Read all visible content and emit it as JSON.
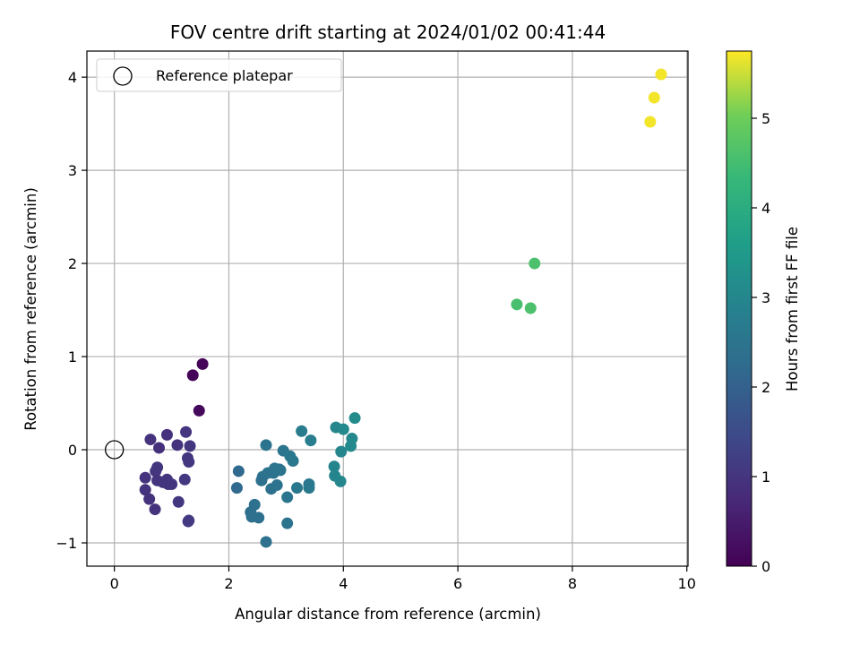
{
  "chart_data": {
    "type": "scatter",
    "title": "FOV centre drift starting at 2024/01/02 00:41:44",
    "xlabel": "Angular distance from reference (arcmin)",
    "ylabel": "Rotation from reference (arcmin)",
    "xlim": [
      -0.48,
      10.02
    ],
    "ylim": [
      -1.25,
      4.28
    ],
    "xticks": [
      0,
      2,
      4,
      6,
      8,
      10
    ],
    "yticks": [
      -1,
      0,
      1,
      2,
      3,
      4
    ],
    "xtick_labels": [
      "0",
      "2",
      "4",
      "6",
      "8",
      "10"
    ],
    "ytick_labels": [
      "−1",
      "0",
      "1",
      "2",
      "3",
      "4"
    ],
    "grid": true,
    "legend": {
      "placement": "top-left",
      "entries": [
        {
          "label": "Reference platepar",
          "marker": "open-circle"
        }
      ]
    },
    "reference_point": {
      "x": 0,
      "y": 0
    },
    "colorbar": {
      "label": "Hours from first FF file",
      "colormap": "viridis",
      "range": [
        0,
        5.75
      ],
      "ticks": [
        0,
        1,
        2,
        3,
        4,
        5
      ],
      "tick_labels": [
        "0",
        "1",
        "2",
        "3",
        "4",
        "5"
      ]
    },
    "points": [
      {
        "x": 1.37,
        "y": 0.8,
        "c": 0.05
      },
      {
        "x": 1.54,
        "y": 0.92,
        "c": 0.1
      },
      {
        "x": 1.48,
        "y": 0.42,
        "c": 0.15
      },
      {
        "x": 0.78,
        "y": 0.02,
        "c": 0.9
      },
      {
        "x": 0.92,
        "y": 0.16,
        "c": 0.92
      },
      {
        "x": 0.63,
        "y": 0.11,
        "c": 0.95
      },
      {
        "x": 1.1,
        "y": 0.05,
        "c": 0.95
      },
      {
        "x": 1.25,
        "y": 0.19,
        "c": 0.97
      },
      {
        "x": 1.32,
        "y": 0.04,
        "c": 1.0
      },
      {
        "x": 1.28,
        "y": -0.09,
        "c": 1.0
      },
      {
        "x": 1.3,
        "y": -0.13,
        "c": 1.02
      },
      {
        "x": 0.75,
        "y": -0.19,
        "c": 1.0
      },
      {
        "x": 0.72,
        "y": -0.23,
        "c": 1.0
      },
      {
        "x": 0.54,
        "y": -0.3,
        "c": 0.95
      },
      {
        "x": 0.75,
        "y": -0.33,
        "c": 0.98
      },
      {
        "x": 0.92,
        "y": -0.32,
        "c": 1.0
      },
      {
        "x": 0.85,
        "y": -0.35,
        "c": 1.0
      },
      {
        "x": 0.94,
        "y": -0.37,
        "c": 1.0
      },
      {
        "x": 1.0,
        "y": -0.37,
        "c": 1.0
      },
      {
        "x": 1.23,
        "y": -0.32,
        "c": 1.05
      },
      {
        "x": 0.54,
        "y": -0.43,
        "c": 0.95
      },
      {
        "x": 0.61,
        "y": -0.53,
        "c": 0.95
      },
      {
        "x": 1.12,
        "y": -0.56,
        "c": 1.05
      },
      {
        "x": 0.71,
        "y": -0.64,
        "c": 0.95
      },
      {
        "x": 1.29,
        "y": -0.77,
        "c": 1.1
      },
      {
        "x": 1.3,
        "y": -0.76,
        "c": 1.1
      },
      {
        "x": 2.17,
        "y": -0.23,
        "c": 2.2
      },
      {
        "x": 2.14,
        "y": -0.41,
        "c": 2.2
      },
      {
        "x": 2.65,
        "y": 0.05,
        "c": 2.5
      },
      {
        "x": 2.59,
        "y": -0.29,
        "c": 2.4
      },
      {
        "x": 2.57,
        "y": -0.33,
        "c": 2.4
      },
      {
        "x": 2.68,
        "y": -0.25,
        "c": 2.45
      },
      {
        "x": 2.74,
        "y": -0.42,
        "c": 2.4
      },
      {
        "x": 2.78,
        "y": -0.25,
        "c": 2.45
      },
      {
        "x": 2.8,
        "y": -0.2,
        "c": 2.45
      },
      {
        "x": 2.84,
        "y": -0.38,
        "c": 2.45
      },
      {
        "x": 2.88,
        "y": -0.21,
        "c": 2.5
      },
      {
        "x": 2.9,
        "y": -0.22,
        "c": 2.5
      },
      {
        "x": 2.95,
        "y": -0.01,
        "c": 2.55
      },
      {
        "x": 3.07,
        "y": -0.07,
        "c": 2.6
      },
      {
        "x": 3.12,
        "y": -0.12,
        "c": 2.6
      },
      {
        "x": 3.02,
        "y": -0.51,
        "c": 2.55
      },
      {
        "x": 3.19,
        "y": -0.41,
        "c": 2.6
      },
      {
        "x": 3.27,
        "y": 0.2,
        "c": 2.7
      },
      {
        "x": 3.43,
        "y": 0.1,
        "c": 2.75
      },
      {
        "x": 3.4,
        "y": -0.37,
        "c": 2.6
      },
      {
        "x": 3.4,
        "y": -0.41,
        "c": 2.6
      },
      {
        "x": 2.45,
        "y": -0.59,
        "c": 2.4
      },
      {
        "x": 2.38,
        "y": -0.67,
        "c": 2.35
      },
      {
        "x": 2.4,
        "y": -0.72,
        "c": 2.35
      },
      {
        "x": 2.52,
        "y": -0.73,
        "c": 2.4
      },
      {
        "x": 3.02,
        "y": -0.79,
        "c": 2.5
      },
      {
        "x": 2.65,
        "y": -0.99,
        "c": 2.4
      },
      {
        "x": 3.87,
        "y": 0.24,
        "c": 3.0
      },
      {
        "x": 4.0,
        "y": 0.22,
        "c": 3.05
      },
      {
        "x": 4.2,
        "y": 0.34,
        "c": 3.1
      },
      {
        "x": 4.15,
        "y": 0.12,
        "c": 3.05
      },
      {
        "x": 4.13,
        "y": 0.04,
        "c": 3.05
      },
      {
        "x": 3.96,
        "y": -0.02,
        "c": 3.0
      },
      {
        "x": 3.84,
        "y": -0.18,
        "c": 2.95
      },
      {
        "x": 3.85,
        "y": -0.28,
        "c": 2.95
      },
      {
        "x": 3.95,
        "y": -0.34,
        "c": 3.0
      },
      {
        "x": 7.03,
        "y": 1.56,
        "c": 4.55
      },
      {
        "x": 7.27,
        "y": 1.52,
        "c": 4.6
      },
      {
        "x": 7.34,
        "y": 2.0,
        "c": 4.6
      },
      {
        "x": 9.36,
        "y": 3.52,
        "c": 5.7
      },
      {
        "x": 9.43,
        "y": 3.78,
        "c": 5.7
      },
      {
        "x": 9.55,
        "y": 4.03,
        "c": 5.7
      }
    ]
  }
}
